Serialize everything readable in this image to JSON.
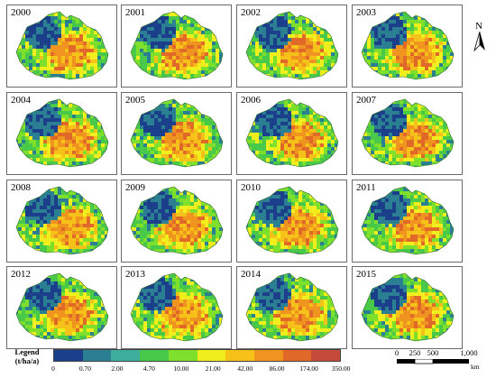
{
  "years": [
    "2000",
    "2001",
    "2002",
    "2003",
    "2004",
    "2005",
    "2006",
    "2007",
    "2008",
    "2009",
    "2010",
    "2011",
    "2012",
    "2013",
    "2014",
    "2015"
  ],
  "north_label": "N",
  "legend": {
    "title_line1": "Legend",
    "title_line2": "(t/ha/a)",
    "colors": [
      "#1b3f8b",
      "#2a7f92",
      "#3cae9b",
      "#49c94a",
      "#7ee02a",
      "#f0ef1d",
      "#f6c21a",
      "#ef951f",
      "#e0692a",
      "#c64a3a"
    ],
    "labels": [
      "0",
      "0.70",
      "2.00",
      "4.70",
      "10.00",
      "21.00",
      "42.00",
      "86.00",
      "174.00",
      "350.00"
    ]
  },
  "scale": {
    "labels": [
      "0",
      "250",
      "500",
      "1,000"
    ],
    "unit": "km"
  }
}
